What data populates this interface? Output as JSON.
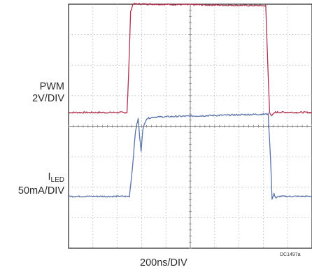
{
  "chart_data": {
    "type": "line",
    "grid": "on (10 x 8 divisions, dotted, with center crosshair)",
    "xlabel": "200ns/DIV",
    "code": "DC1497a",
    "series": [
      {
        "name": "PWM",
        "channel_label": "PWM",
        "scale_label": "2V/DIV",
        "color": "#b0314f",
        "base_div": 3.55,
        "x": [
          0,
          2.4,
          2.46,
          2.55,
          2.65,
          8.1,
          8.2,
          8.26,
          8.35,
          8.5,
          10
        ],
        "y": [
          0,
          0,
          1.1,
          3.3,
          3.56,
          3.5,
          1.2,
          0,
          -0.1,
          0.01,
          0
        ]
      },
      {
        "name": "I_LED",
        "channel_label": "I",
        "channel_sub": "LED",
        "scale_label": "50mA/DIV",
        "color": "#5a73a8",
        "base_div": 6.3,
        "x": [
          0,
          2.5,
          2.62,
          2.75,
          2.86,
          2.92,
          2.98,
          3.05,
          3.2,
          3.5,
          8.2,
          8.3,
          8.36,
          8.44,
          8.52,
          8.65,
          10
        ],
        "y": [
          0,
          0,
          0.9,
          2.15,
          2.55,
          1.95,
          1.5,
          2.2,
          2.55,
          2.6,
          2.7,
          1.2,
          -0.1,
          0.08,
          -0.05,
          0.0,
          0
        ]
      }
    ]
  }
}
